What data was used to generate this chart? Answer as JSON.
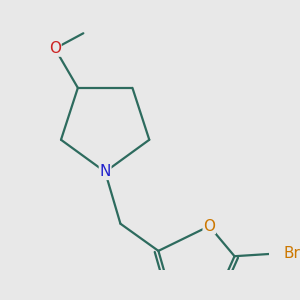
{
  "background_color": "#e8e8e8",
  "bond_color": "#2d6b5e",
  "bond_width": 1.6,
  "atom_colors": {
    "N": "#2222cc",
    "O_methoxy": "#cc2222",
    "O_furan": "#cc7700",
    "Br": "#cc7700",
    "C": "#2d6b5e"
  },
  "figsize": [
    3.0,
    3.0
  ],
  "dpi": 100
}
